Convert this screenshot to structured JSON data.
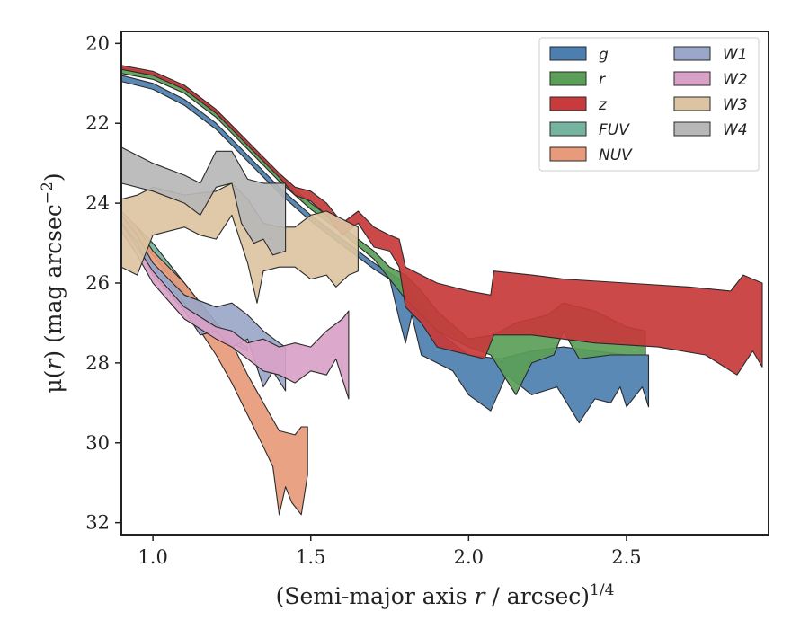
{
  "chart_data": {
    "type": "area",
    "xlabel": "(Semi-major axis r / arcsec)1/4",
    "xlabel_parts": {
      "main": "(Semi-major axis ",
      "var": "r",
      "rest": " / arcsec)",
      "sup": "1/4"
    },
    "ylabel": "μ(r) (mag arcsec−2)",
    "ylabel_parts": {
      "mu": "μ(",
      "var": "r",
      "rest": ") (mag arcsec",
      "sup": "−2",
      "end": ")"
    },
    "xlim": [
      0.9,
      2.95
    ],
    "ylim": [
      32.3,
      19.7
    ],
    "y_inverted": true,
    "xticks": [
      1.0,
      1.5,
      2.0,
      2.5
    ],
    "xtick_labels": [
      "1.0",
      "1.5",
      "2.0",
      "2.5"
    ],
    "yticks": [
      20,
      22,
      24,
      26,
      28,
      30,
      32
    ],
    "ytick_labels": [
      "20",
      "22",
      "24",
      "26",
      "28",
      "30",
      "32"
    ],
    "grid": false,
    "legend_placement": "top-right",
    "legend_columns": 2,
    "series": [
      {
        "name": "g",
        "color": "#4c7fb0",
        "upper": [
          [
            0.9,
            20.8
          ],
          [
            1.0,
            21.0
          ],
          [
            1.1,
            21.4
          ],
          [
            1.2,
            22.0
          ],
          [
            1.3,
            22.8
          ],
          [
            1.4,
            23.6
          ],
          [
            1.5,
            24.3
          ],
          [
            1.6,
            24.9
          ],
          [
            1.7,
            25.5
          ],
          [
            1.8,
            26.0
          ],
          [
            1.85,
            26.5
          ],
          [
            1.9,
            27.2
          ],
          [
            2.0,
            27.8
          ],
          [
            2.1,
            27.9
          ],
          [
            2.2,
            27.7
          ],
          [
            2.3,
            27.6
          ],
          [
            2.4,
            27.7
          ],
          [
            2.5,
            27.8
          ],
          [
            2.57,
            27.8
          ]
        ],
        "lower": [
          [
            0.9,
            20.95
          ],
          [
            1.0,
            21.15
          ],
          [
            1.1,
            21.55
          ],
          [
            1.2,
            22.15
          ],
          [
            1.3,
            22.95
          ],
          [
            1.4,
            23.75
          ],
          [
            1.5,
            24.45
          ],
          [
            1.6,
            25.05
          ],
          [
            1.7,
            25.65
          ],
          [
            1.75,
            25.9
          ],
          [
            1.78,
            26.9
          ],
          [
            1.8,
            27.5
          ],
          [
            1.82,
            26.8
          ],
          [
            1.85,
            27.8
          ],
          [
            1.9,
            28.0
          ],
          [
            1.95,
            28.2
          ],
          [
            2.0,
            28.8
          ],
          [
            2.07,
            29.2
          ],
          [
            2.12,
            28.3
          ],
          [
            2.2,
            28.8
          ],
          [
            2.28,
            28.6
          ],
          [
            2.35,
            29.5
          ],
          [
            2.4,
            28.9
          ],
          [
            2.45,
            29.0
          ],
          [
            2.48,
            28.6
          ],
          [
            2.5,
            29.1
          ],
          [
            2.55,
            28.6
          ],
          [
            2.57,
            29.1
          ]
        ]
      },
      {
        "name": "r",
        "color": "#5a9e57",
        "upper": [
          [
            0.9,
            20.6
          ],
          [
            1.0,
            20.75
          ],
          [
            1.1,
            21.1
          ],
          [
            1.2,
            21.7
          ],
          [
            1.3,
            22.5
          ],
          [
            1.4,
            23.3
          ],
          [
            1.5,
            24.0
          ],
          [
            1.6,
            24.6
          ],
          [
            1.7,
            25.2
          ],
          [
            1.75,
            25.6
          ],
          [
            1.8,
            25.8
          ],
          [
            1.85,
            26.2
          ],
          [
            1.9,
            26.7
          ],
          [
            2.0,
            27.4
          ],
          [
            2.08,
            27.3
          ],
          [
            2.15,
            27.0
          ],
          [
            2.25,
            26.8
          ],
          [
            2.3,
            26.5
          ],
          [
            2.4,
            26.7
          ],
          [
            2.5,
            27.1
          ],
          [
            2.56,
            27.2
          ]
        ],
        "lower": [
          [
            0.9,
            20.75
          ],
          [
            1.0,
            20.9
          ],
          [
            1.1,
            21.25
          ],
          [
            1.2,
            21.85
          ],
          [
            1.3,
            22.65
          ],
          [
            1.4,
            23.45
          ],
          [
            1.5,
            24.15
          ],
          [
            1.6,
            24.75
          ],
          [
            1.7,
            25.4
          ],
          [
            1.75,
            25.9
          ],
          [
            1.8,
            26.4
          ],
          [
            1.85,
            26.8
          ],
          [
            1.9,
            27.2
          ],
          [
            2.0,
            27.6
          ],
          [
            2.07,
            27.8
          ],
          [
            2.15,
            28.8
          ],
          [
            2.2,
            28.0
          ],
          [
            2.27,
            27.8
          ],
          [
            2.3,
            27.2
          ],
          [
            2.35,
            27.9
          ],
          [
            2.45,
            27.8
          ],
          [
            2.56,
            27.8
          ]
        ]
      },
      {
        "name": "z",
        "color": "#c83a3b",
        "upper": [
          [
            0.9,
            20.55
          ],
          [
            1.0,
            20.7
          ],
          [
            1.1,
            21.05
          ],
          [
            1.2,
            21.65
          ],
          [
            1.3,
            22.45
          ],
          [
            1.4,
            23.25
          ],
          [
            1.45,
            23.6
          ],
          [
            1.5,
            23.7
          ],
          [
            1.55,
            24.0
          ],
          [
            1.6,
            24.5
          ],
          [
            1.65,
            24.2
          ],
          [
            1.7,
            24.6
          ],
          [
            1.75,
            24.8
          ],
          [
            1.78,
            24.9
          ],
          [
            1.8,
            25.6
          ],
          [
            1.85,
            25.8
          ],
          [
            1.9,
            26.0
          ],
          [
            2.0,
            26.2
          ],
          [
            2.07,
            26.3
          ],
          [
            2.08,
            25.7
          ],
          [
            2.2,
            25.8
          ],
          [
            2.3,
            25.9
          ],
          [
            2.5,
            26.0
          ],
          [
            2.7,
            26.1
          ],
          [
            2.83,
            26.2
          ],
          [
            2.87,
            25.8
          ],
          [
            2.9,
            25.9
          ],
          [
            2.93,
            26.0
          ]
        ],
        "lower": [
          [
            0.9,
            20.65
          ],
          [
            1.0,
            20.8
          ],
          [
            1.1,
            21.15
          ],
          [
            1.2,
            21.75
          ],
          [
            1.3,
            22.55
          ],
          [
            1.4,
            23.35
          ],
          [
            1.45,
            23.8
          ],
          [
            1.5,
            23.95
          ],
          [
            1.55,
            24.3
          ],
          [
            1.6,
            24.8
          ],
          [
            1.65,
            24.5
          ],
          [
            1.7,
            25.1
          ],
          [
            1.75,
            25.2
          ],
          [
            1.78,
            25.6
          ],
          [
            1.8,
            26.6
          ],
          [
            1.85,
            27.0
          ],
          [
            1.9,
            27.6
          ],
          [
            2.0,
            27.8
          ],
          [
            2.05,
            27.9
          ],
          [
            2.08,
            27.3
          ],
          [
            2.2,
            27.3
          ],
          [
            2.4,
            27.5
          ],
          [
            2.6,
            27.6
          ],
          [
            2.75,
            27.8
          ],
          [
            2.85,
            28.3
          ],
          [
            2.9,
            27.7
          ],
          [
            2.93,
            28.1
          ]
        ]
      },
      {
        "name": "FUV",
        "color": "#74b4a0",
        "upper": [
          [
            0.9,
            24.5
          ],
          [
            0.95,
            24.6
          ],
          [
            1.0,
            25.0
          ],
          [
            1.1,
            26.0
          ],
          [
            1.2,
            27.0
          ],
          [
            1.25,
            27.4
          ],
          [
            1.3,
            27.6
          ]
        ],
        "lower": [
          [
            0.9,
            24.7
          ],
          [
            0.95,
            24.9
          ],
          [
            1.0,
            25.3
          ],
          [
            1.1,
            26.3
          ],
          [
            1.2,
            27.2
          ],
          [
            1.25,
            27.5
          ],
          [
            1.3,
            27.7
          ]
        ]
      },
      {
        "name": "NUV",
        "color": "#e89a7a",
        "upper": [
          [
            0.9,
            24.2
          ],
          [
            0.95,
            24.6
          ],
          [
            1.0,
            25.2
          ],
          [
            1.1,
            26.0
          ],
          [
            1.15,
            26.5
          ],
          [
            1.2,
            27.0
          ],
          [
            1.25,
            27.5
          ],
          [
            1.3,
            28.3
          ],
          [
            1.35,
            29.0
          ],
          [
            1.4,
            29.7
          ],
          [
            1.45,
            29.8
          ],
          [
            1.47,
            29.6
          ],
          [
            1.49,
            29.6
          ]
        ],
        "lower": [
          [
            0.9,
            24.4
          ],
          [
            0.95,
            25.0
          ],
          [
            1.0,
            25.6
          ],
          [
            1.1,
            26.5
          ],
          [
            1.15,
            27.2
          ],
          [
            1.2,
            27.8
          ],
          [
            1.25,
            28.5
          ],
          [
            1.3,
            29.3
          ],
          [
            1.35,
            30.1
          ],
          [
            1.38,
            30.6
          ],
          [
            1.4,
            31.8
          ],
          [
            1.42,
            31.1
          ],
          [
            1.44,
            31.5
          ],
          [
            1.47,
            31.8
          ],
          [
            1.49,
            30.8
          ]
        ]
      },
      {
        "name": "W1",
        "color": "#9aa7c8",
        "upper": [
          [
            0.9,
            24.3
          ],
          [
            0.95,
            24.8
          ],
          [
            1.0,
            25.5
          ],
          [
            1.1,
            26.3
          ],
          [
            1.2,
            26.6
          ],
          [
            1.25,
            26.5
          ],
          [
            1.3,
            26.8
          ],
          [
            1.35,
            27.2
          ],
          [
            1.4,
            27.5
          ],
          [
            1.42,
            27.6
          ]
        ],
        "lower": [
          [
            0.9,
            24.5
          ],
          [
            0.95,
            25.0
          ],
          [
            1.0,
            25.8
          ],
          [
            1.1,
            26.7
          ],
          [
            1.15,
            27.3
          ],
          [
            1.2,
            27.2
          ],
          [
            1.25,
            27.6
          ],
          [
            1.3,
            27.4
          ],
          [
            1.35,
            28.6
          ],
          [
            1.38,
            28.2
          ],
          [
            1.42,
            28.7
          ]
        ]
      },
      {
        "name": "W2",
        "color": "#d9a1c8",
        "upper": [
          [
            0.9,
            24.5
          ],
          [
            0.95,
            25.1
          ],
          [
            1.0,
            25.7
          ],
          [
            1.1,
            26.6
          ],
          [
            1.2,
            27.1
          ],
          [
            1.25,
            27.2
          ],
          [
            1.3,
            27.5
          ],
          [
            1.35,
            27.4
          ],
          [
            1.4,
            27.6
          ],
          [
            1.45,
            27.5
          ],
          [
            1.5,
            27.6
          ],
          [
            1.55,
            27.2
          ],
          [
            1.6,
            26.9
          ],
          [
            1.62,
            26.7
          ]
        ],
        "lower": [
          [
            0.9,
            24.7
          ],
          [
            0.95,
            25.3
          ],
          [
            1.0,
            26.0
          ],
          [
            1.1,
            26.9
          ],
          [
            1.2,
            27.4
          ],
          [
            1.25,
            27.6
          ],
          [
            1.3,
            27.9
          ],
          [
            1.35,
            28.2
          ],
          [
            1.4,
            28.3
          ],
          [
            1.45,
            28.5
          ],
          [
            1.5,
            28.2
          ],
          [
            1.55,
            28.3
          ],
          [
            1.58,
            27.9
          ],
          [
            1.62,
            28.9
          ]
        ]
      },
      {
        "name": "W3",
        "color": "#dcc4a2",
        "upper": [
          [
            0.9,
            23.9
          ],
          [
            0.95,
            23.8
          ],
          [
            1.0,
            23.6
          ],
          [
            1.1,
            23.8
          ],
          [
            1.2,
            23.7
          ],
          [
            1.25,
            23.5
          ],
          [
            1.3,
            23.9
          ],
          [
            1.35,
            24.5
          ],
          [
            1.4,
            24.6
          ],
          [
            1.45,
            24.6
          ],
          [
            1.5,
            24.3
          ],
          [
            1.55,
            24.2
          ],
          [
            1.6,
            24.4
          ],
          [
            1.65,
            24.6
          ]
        ],
        "lower": [
          [
            0.9,
            25.6
          ],
          [
            0.95,
            25.8
          ],
          [
            1.0,
            24.8
          ],
          [
            1.1,
            24.6
          ],
          [
            1.15,
            24.8
          ],
          [
            1.2,
            24.9
          ],
          [
            1.25,
            24.3
          ],
          [
            1.3,
            25.5
          ],
          [
            1.33,
            26.5
          ],
          [
            1.35,
            25.7
          ],
          [
            1.4,
            25.6
          ],
          [
            1.45,
            25.6
          ],
          [
            1.5,
            25.9
          ],
          [
            1.55,
            25.8
          ],
          [
            1.58,
            26.1
          ],
          [
            1.62,
            25.8
          ],
          [
            1.65,
            25.7
          ]
        ]
      },
      {
        "name": "W4",
        "color": "#b7b7b7",
        "upper": [
          [
            0.9,
            22.6
          ],
          [
            1.0,
            23.0
          ],
          [
            1.1,
            23.3
          ],
          [
            1.15,
            23.5
          ],
          [
            1.2,
            22.7
          ],
          [
            1.25,
            22.7
          ],
          [
            1.3,
            23.4
          ],
          [
            1.35,
            23.5
          ],
          [
            1.42,
            23.5
          ]
        ],
        "lower": [
          [
            0.9,
            23.5
          ],
          [
            1.0,
            23.7
          ],
          [
            1.1,
            24.0
          ],
          [
            1.15,
            24.3
          ],
          [
            1.2,
            23.6
          ],
          [
            1.25,
            23.5
          ],
          [
            1.28,
            24.5
          ],
          [
            1.32,
            25.0
          ],
          [
            1.35,
            24.9
          ],
          [
            1.38,
            25.3
          ],
          [
            1.42,
            25.2
          ]
        ]
      }
    ]
  }
}
